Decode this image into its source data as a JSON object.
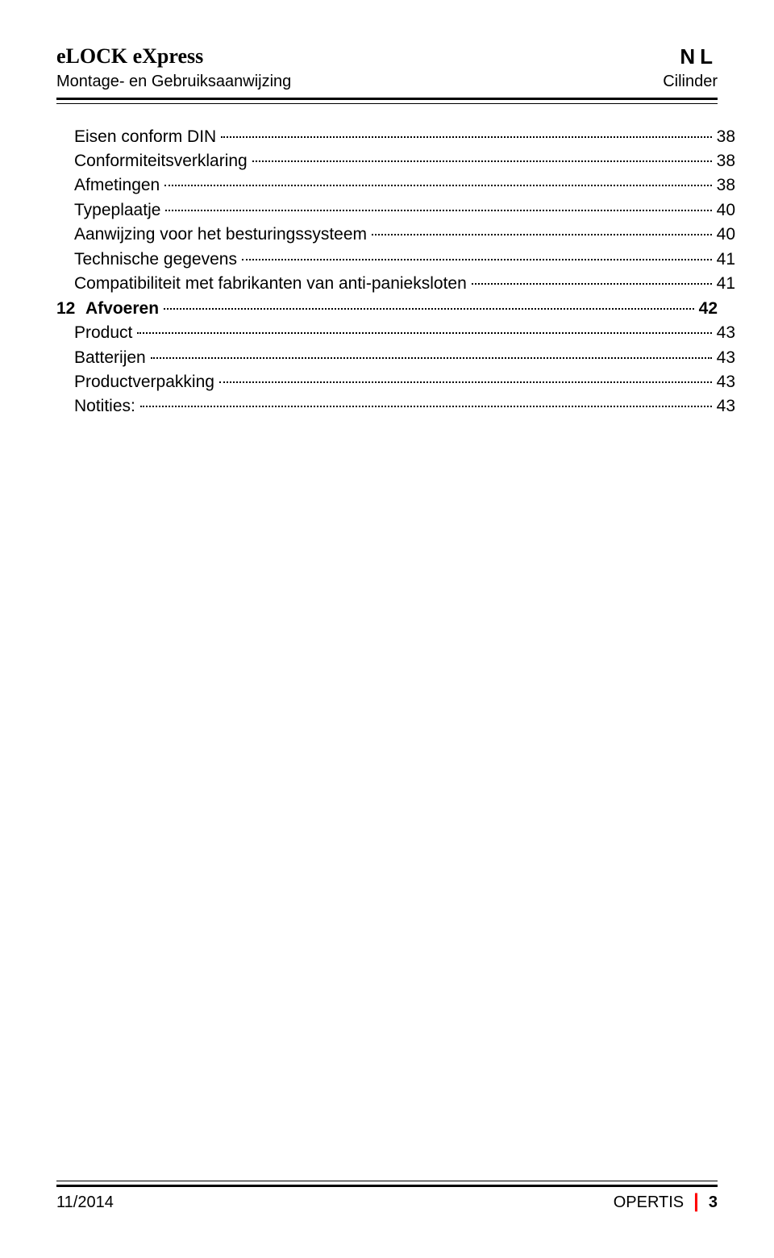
{
  "header": {
    "brand": "eLOCK eXpress",
    "lang": "NL",
    "subtitle_left": "Montage- en Gebruiksaanwijzing",
    "subtitle_right": "Cilinder"
  },
  "toc": {
    "entries": [
      {
        "label": "Eisen conform DIN",
        "page": "38",
        "indent": 1,
        "bold": false
      },
      {
        "label": "Conformiteitsverklaring",
        "page": "38",
        "indent": 1,
        "bold": false
      },
      {
        "label": "Afmetingen",
        "page": "38",
        "indent": 1,
        "bold": false
      },
      {
        "label": "Typeplaatje",
        "page": "40",
        "indent": 1,
        "bold": false
      },
      {
        "label": "Aanwijzing voor het besturingssysteem",
        "page": "40",
        "indent": 1,
        "bold": false
      },
      {
        "label": "Technische gegevens",
        "page": "41",
        "indent": 1,
        "bold": false
      },
      {
        "label": "Compatibiliteit met fabrikanten van anti-panieksloten",
        "page": "41",
        "indent": 1,
        "bold": false
      },
      {
        "num": "12",
        "label": "Afvoeren",
        "page": "42",
        "indent": 0,
        "bold": true
      },
      {
        "label": "Product",
        "page": "43",
        "indent": 1,
        "bold": false
      },
      {
        "label": "Batterijen",
        "page": "43",
        "indent": 1,
        "bold": false
      },
      {
        "label": "Productverpakking",
        "page": "43",
        "indent": 1,
        "bold": false
      },
      {
        "label": "Notities:",
        "page": "43",
        "indent": 1,
        "bold": false
      }
    ]
  },
  "footer": {
    "left": "11/2014",
    "right_brand": "OPERTIS",
    "page_number": "3"
  },
  "colors": {
    "text": "#000000",
    "bg": "#ffffff",
    "accent": "#ff0000"
  }
}
